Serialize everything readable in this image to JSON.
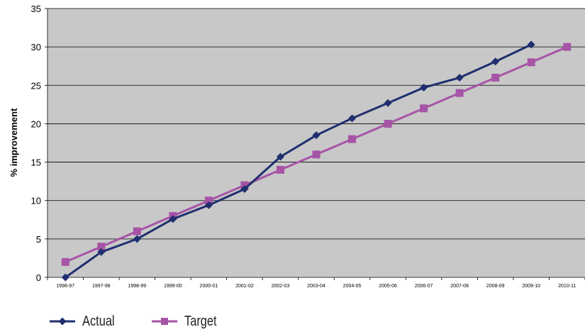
{
  "chart_data": {
    "type": "line",
    "title": "",
    "xlabel": "",
    "ylabel": "% improvement",
    "ylim": [
      0,
      35
    ],
    "yticks": [
      0,
      5,
      10,
      15,
      20,
      25,
      30,
      35
    ],
    "grid": true,
    "legend_position": "bottom-left",
    "categories": [
      "1996-97",
      "1997-98",
      "1998-99",
      "1999-00",
      "2000-01",
      "2001-02",
      "2002-03",
      "2003-04",
      "2004-05",
      "2005-06",
      "2006-07",
      "2007-08",
      "2008-09",
      "2009-10",
      "2010-11"
    ],
    "series": [
      {
        "name": "Actual",
        "color": "#1f2f6e",
        "marker": "diamond",
        "values": [
          0.0,
          3.3,
          5.0,
          7.6,
          9.4,
          11.5,
          15.7,
          18.5,
          20.7,
          22.7,
          24.7,
          26.0,
          28.1,
          30.3,
          null
        ]
      },
      {
        "name": "Target",
        "color": "#a654a6",
        "marker": "square",
        "values": [
          2.0,
          4.0,
          6.0,
          8.0,
          10.0,
          12.0,
          14.0,
          16.0,
          18.0,
          20.0,
          22.0,
          24.0,
          26.0,
          28.0,
          30.0
        ]
      }
    ]
  }
}
